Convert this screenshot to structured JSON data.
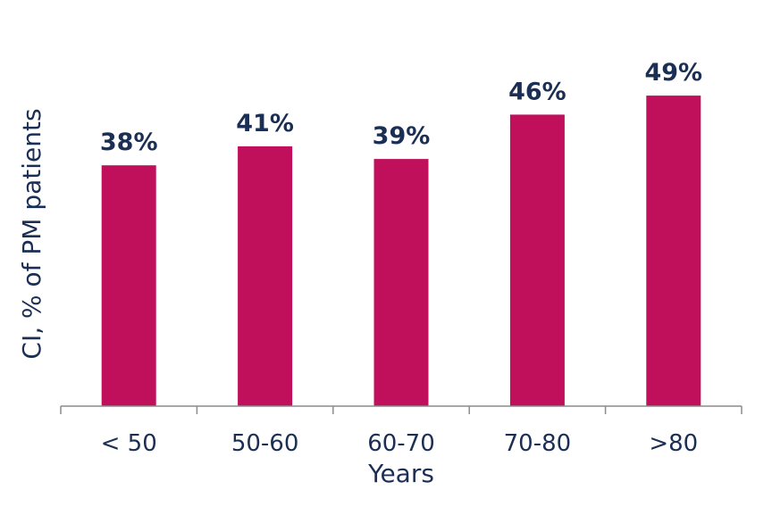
{
  "chart_data": {
    "type": "bar",
    "categories": [
      "< 50",
      "50-60",
      "60-70",
      "70-80",
      ">80"
    ],
    "values": [
      38,
      41,
      39,
      46,
      49
    ],
    "value_labels": [
      "38%",
      "41%",
      "39%",
      "46%",
      "49%"
    ],
    "title": "",
    "xlabel": "Years",
    "ylabel": "CI, % of PM patients",
    "ylim": [
      0,
      50
    ],
    "grid": false,
    "legend": "none",
    "bar_color": "#c0105c",
    "text_color": "#1b2f55"
  }
}
